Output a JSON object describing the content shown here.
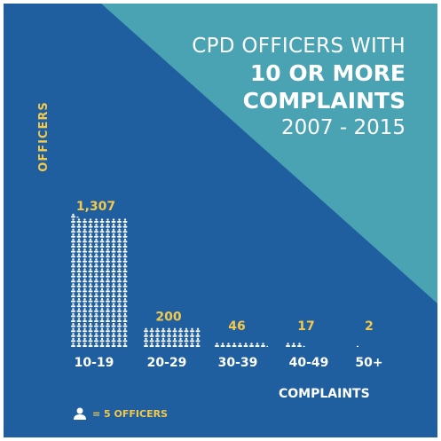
{
  "title": {
    "line1": "CPD OFFICERS WITH",
    "line2": "10 OR MORE",
    "line3": "COMPLAINTS",
    "line4": "2007 - 2015"
  },
  "legend": {
    "text": "= 5 OFFICERS",
    "icon": "person-icon"
  },
  "colors": {
    "background": "#1f5fa0",
    "triangle": "#49a3b3",
    "value_label": "#f2c94c",
    "icon": "#ffffff"
  },
  "chart_data": {
    "type": "bar",
    "ylabel": "OFFICERS",
    "xlabel": "COMPLAINTS",
    "categories": [
      "10-19",
      "20-29",
      "30-39",
      "40-49",
      "50+"
    ],
    "values": [
      1307,
      200,
      46,
      17,
      2
    ],
    "value_labels": [
      "1,307",
      "200",
      "46",
      "17",
      "2"
    ],
    "officers_per_icon": 5
  }
}
